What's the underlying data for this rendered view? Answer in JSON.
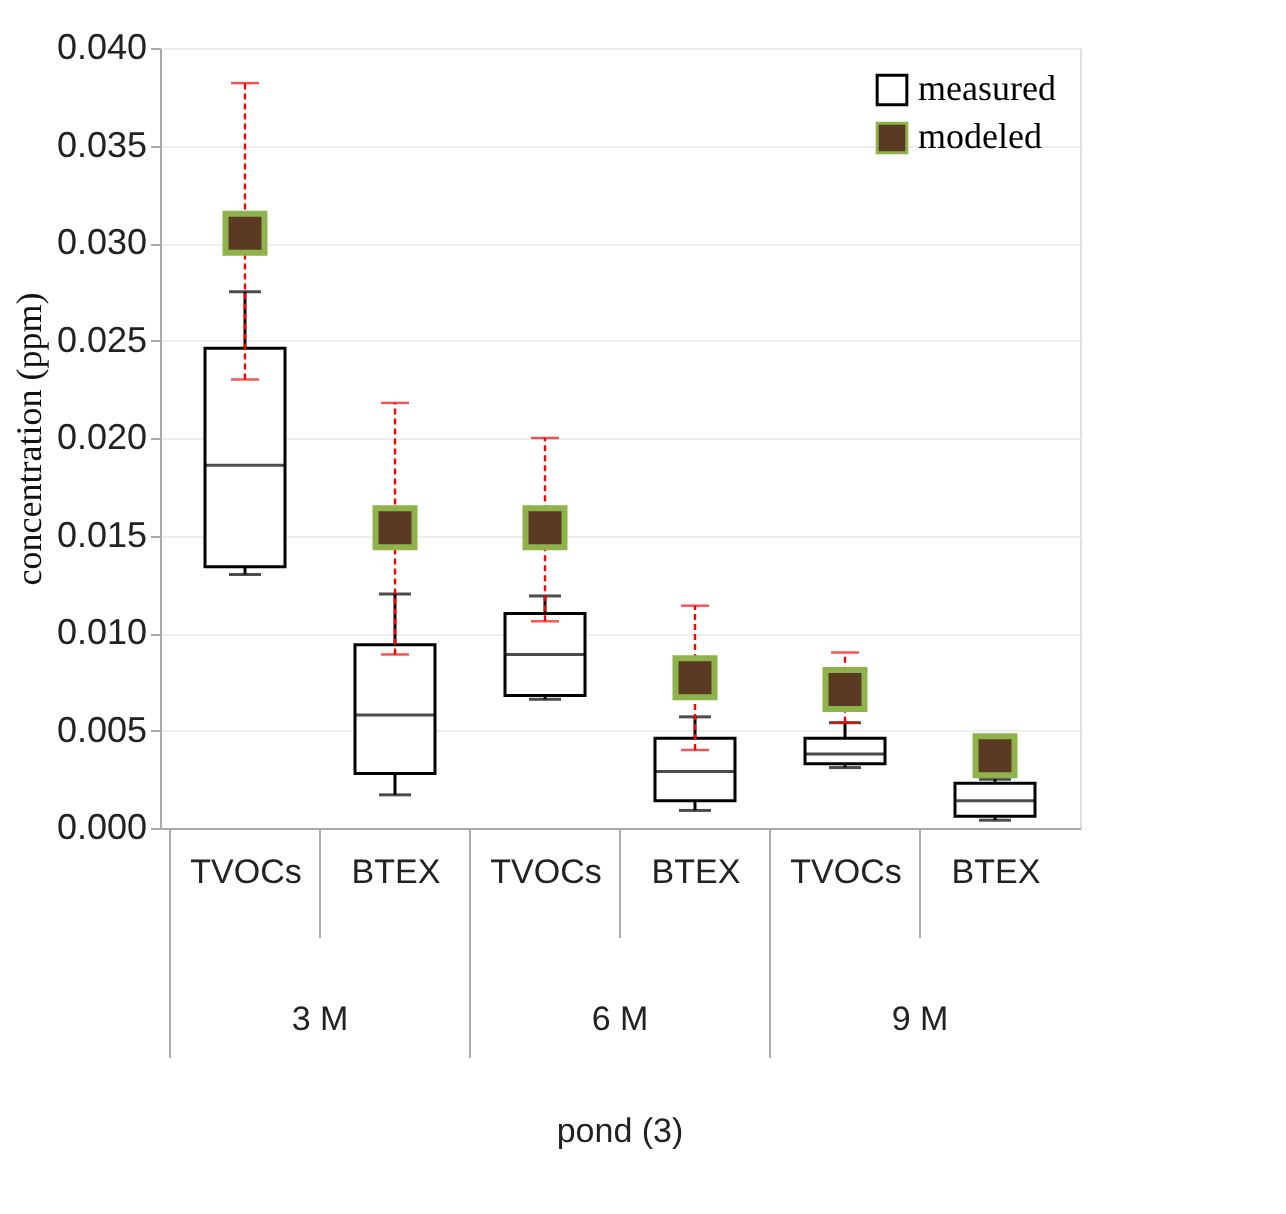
{
  "chart_data": {
    "type": "box",
    "ylabel": "concentration (ppm)",
    "categories": [
      "TVOCs",
      "BTEX",
      "TVOCs",
      "BTEX",
      "TVOCs",
      "BTEX"
    ],
    "annotations": [
      "3 M",
      "6 M",
      "9 M",
      "pond (3)"
    ],
    "ylim": [
      0,
      0.04
    ],
    "yticks": [
      {
        "value": 0,
        "label": "0.000"
      },
      {
        "value": 0.005,
        "label": "0.005"
      },
      {
        "value": 0.01,
        "label": "0.010"
      },
      {
        "value": 0.015,
        "label": "0.015"
      },
      {
        "value": 0.02,
        "label": "0.020"
      },
      {
        "value": 0.025,
        "label": "0.025"
      },
      {
        "value": 0.03,
        "label": "0.030"
      },
      {
        "value": 0.035,
        "label": "0.035"
      },
      {
        "value": 0.04,
        "label": "0.040"
      }
    ],
    "grid": "y",
    "legend": "top right",
    "series": [
      {
        "name": "measured",
        "color": "#ffffff",
        "boxes": [
          {
            "low": 0.013,
            "q1": 0.0134,
            "median": 0.0186,
            "q3": 0.0246,
            "high": 0.0275
          },
          {
            "low": 0.0017,
            "q1": 0.0028,
            "median": 0.0058,
            "q3": 0.0094,
            "high": 0.012
          },
          {
            "low": 0.0066,
            "q1": 0.0068,
            "median": 0.0089,
            "q3": 0.011,
            "high": 0.0119
          },
          {
            "low": 0.0009,
            "q1": 0.0014,
            "median": 0.0029,
            "q3": 0.0046,
            "high": 0.0057
          },
          {
            "low": 0.0031,
            "q1": 0.0033,
            "median": 0.0038,
            "q3": 0.0046,
            "high": 0.0054
          },
          {
            "low": 0.0004,
            "q1": 0.0006,
            "median": 0.0014,
            "q3": 0.0023,
            "high": 0.0025
          }
        ]
      },
      {
        "name": "modeled",
        "type": "scatter",
        "color": "#5a3a22",
        "marker": "square",
        "values": [
          0.0305,
          0.0154,
          0.0154,
          0.0077,
          0.0071,
          0.0037
        ],
        "errors": [
          [
            0.023,
            0.0382
          ],
          [
            0.0089,
            0.0218
          ],
          [
            0.0106,
            0.02
          ],
          [
            0.004,
            0.0114
          ],
          [
            0.0054,
            0.009
          ],
          null
        ]
      }
    ]
  }
}
